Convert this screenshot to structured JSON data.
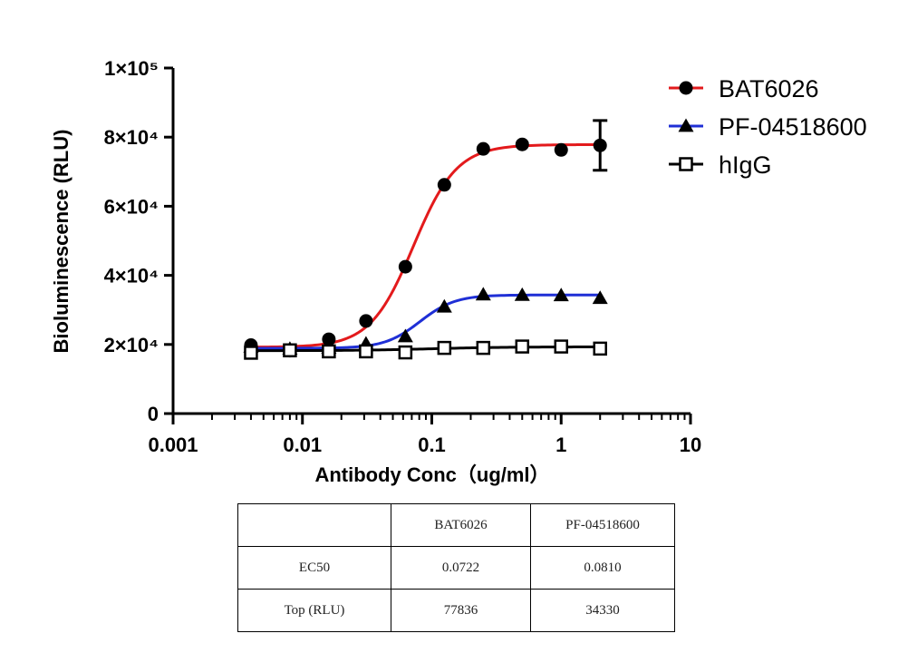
{
  "chart_data": {
    "type": "scatter",
    "ylabel": "Bioluminescence (RLU)",
    "xlabel": "Antibody Conc（ug/ml）",
    "x_scale": "log",
    "xlim": [
      0.001,
      10
    ],
    "ylim": [
      0,
      100000
    ],
    "x_ticks": [
      {
        "value": 0.001,
        "label": "0.001"
      },
      {
        "value": 0.01,
        "label": "0.01"
      },
      {
        "value": 0.1,
        "label": "0.1"
      },
      {
        "value": 1,
        "label": "1"
      },
      {
        "value": 10,
        "label": "10"
      }
    ],
    "y_ticks": [
      {
        "value": 0,
        "label": "0"
      },
      {
        "value": 20000,
        "label": "2×10⁴"
      },
      {
        "value": 40000,
        "label": "4×10⁴"
      },
      {
        "value": 60000,
        "label": "6×10⁴"
      },
      {
        "value": 80000,
        "label": "8×10⁴"
      },
      {
        "value": 100000,
        "label": "1×10⁵"
      }
    ],
    "legend_position": "top-right",
    "series": [
      {
        "name": "BAT6026",
        "color": "#e31a1c",
        "marker": "circle",
        "points": [
          {
            "x": 0.004,
            "y": 19800
          },
          {
            "x": 0.008,
            "y": 18200
          },
          {
            "x": 0.016,
            "y": 21500
          },
          {
            "x": 0.031,
            "y": 26800
          },
          {
            "x": 0.0625,
            "y": 42500
          },
          {
            "x": 0.125,
            "y": 66200
          },
          {
            "x": 0.25,
            "y": 76600
          },
          {
            "x": 0.5,
            "y": 77900
          },
          {
            "x": 1,
            "y": 76300
          },
          {
            "x": 2,
            "y": 77600,
            "err": 7200
          }
        ],
        "fit": {
          "bottom": 19200,
          "top": 77836,
          "ec50": 0.0722,
          "hill": 2.6
        }
      },
      {
        "name": "PF-04518600",
        "color": "#1f2fd6",
        "marker": "triangle",
        "points": [
          {
            "x": 0.004,
            "y": 19300
          },
          {
            "x": 0.008,
            "y": 18700
          },
          {
            "x": 0.016,
            "y": 19000
          },
          {
            "x": 0.031,
            "y": 20200
          },
          {
            "x": 0.0625,
            "y": 22300
          },
          {
            "x": 0.125,
            "y": 30900
          },
          {
            "x": 0.25,
            "y": 34400
          },
          {
            "x": 0.5,
            "y": 34300
          },
          {
            "x": 1,
            "y": 34200
          },
          {
            "x": 2,
            "y": 33400
          }
        ],
        "fit": {
          "bottom": 18900,
          "top": 34330,
          "ec50": 0.081,
          "hill": 3.2
        }
      },
      {
        "name": "hIgG",
        "color": "#000000",
        "marker": "square-open",
        "points": [
          {
            "x": 0.004,
            "y": 17600
          },
          {
            "x": 0.008,
            "y": 18300
          },
          {
            "x": 0.016,
            "y": 18000
          },
          {
            "x": 0.031,
            "y": 18000
          },
          {
            "x": 0.0625,
            "y": 17700
          },
          {
            "x": 0.125,
            "y": 19000
          },
          {
            "x": 0.25,
            "y": 19000
          },
          {
            "x": 0.5,
            "y": 19400
          },
          {
            "x": 1,
            "y": 19400
          },
          {
            "x": 2,
            "y": 18800
          }
        ],
        "fit": {
          "bottom": 18200,
          "top": 19300,
          "ec50": 0.1,
          "hill": 1.5
        }
      }
    ]
  },
  "table": {
    "header": [
      "",
      "BAT6026",
      "PF-04518600"
    ],
    "rows": [
      [
        "EC50",
        "0.0722",
        "0.0810"
      ],
      [
        "Top (RLU)",
        "77836",
        "34330"
      ]
    ]
  }
}
